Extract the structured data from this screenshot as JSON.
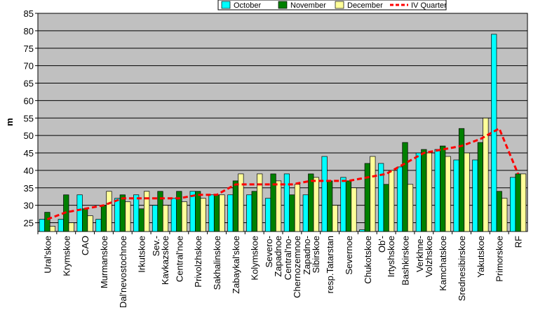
{
  "chart_data": {
    "type": "bar",
    "y_label": "m",
    "categories": [
      "Ural'skoe",
      "Krymskoe",
      "CAO",
      "Murmanskoe",
      "Dal'nevostochnoe",
      "Irkutskoe",
      "Sev.-\nKavkazskoe",
      "Central'noe",
      "Privolzhskoe",
      "Sakhalinskoe",
      "Zabaykal'skoe",
      "Kolymskoe",
      "Severo-\nZapadnoe",
      "Central'no-\nChernozemnoe",
      "Zapadno-\nSibirskoe",
      "resp.Tatarstan",
      "Severnoe",
      "Chukotskoe",
      "Ob'-\nIrtyshskoe",
      "Bashkirskoe",
      "Verkhne-\nVolzhskoe",
      "Kamchatskoe",
      "Srednesibirskoe",
      "Yakutskoe",
      "Primorskoe",
      "RF"
    ],
    "series": [
      {
        "name": "October",
        "type": "bar",
        "color": "#00ffff",
        "values": [
          26,
          26,
          33,
          26,
          32,
          33,
          30,
          32,
          34,
          33,
          33,
          33,
          32,
          39,
          33,
          44,
          38,
          23,
          42,
          41,
          45,
          46,
          43,
          43,
          79,
          38
        ]
      },
      {
        "name": "November",
        "type": "bar",
        "color": "#008000",
        "values": [
          28,
          33,
          29,
          30,
          33,
          29,
          34,
          34,
          34,
          33,
          37,
          34,
          39,
          33,
          39,
          37,
          37,
          42,
          36,
          48,
          46,
          47,
          52,
          48,
          34,
          39
        ]
      },
      {
        "name": "December",
        "type": "bar",
        "color": "#ffff99",
        "values": [
          24,
          25,
          27,
          34,
          31,
          34,
          30,
          31,
          32,
          33,
          39,
          39,
          37,
          36,
          38,
          30,
          35,
          44,
          40,
          36,
          45,
          44,
          45,
          55,
          32,
          39
        ]
      },
      {
        "name": "IV Quarter",
        "type": "line",
        "color": "#ff0000",
        "values": [
          26,
          28,
          29,
          30,
          32,
          32,
          32,
          32,
          33,
          33,
          36,
          36,
          36,
          36,
          37,
          37,
          37,
          38,
          39,
          42,
          45,
          46,
          47,
          49,
          52,
          39
        ]
      }
    ],
    "ylim": [
      22.5,
      85
    ],
    "yticks": [
      25,
      30,
      35,
      40,
      45,
      50,
      55,
      60,
      65,
      70,
      75,
      80,
      85
    ],
    "grid": true,
    "legend": "top",
    "background": "#c0c0c0"
  }
}
